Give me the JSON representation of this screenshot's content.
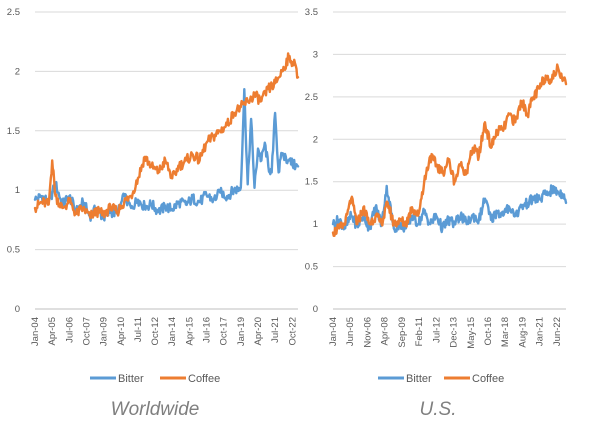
{
  "colors": {
    "bitter": "#5b9bd5",
    "coffee": "#ed7d31",
    "grid": "#d9d9d9",
    "axis_text": "#595959",
    "caption": "#7f7f7f"
  },
  "chart_data": [
    {
      "type": "line",
      "title": "",
      "caption": "Worldwide",
      "xlabel": "",
      "ylabel": "",
      "ylim": [
        0,
        2.5
      ],
      "yticks": [
        "0",
        "0.5",
        "1",
        "1.5",
        "2",
        "2.5"
      ],
      "grid": true,
      "legend_position": "bottom",
      "x_tick_labels": [
        "Jan-04",
        "Apr-05",
        "Jul-06",
        "Oct-07",
        "Jan-09",
        "Apr-10",
        "Jul-11",
        "Oct-12",
        "Jan-14",
        "Apr-15",
        "Jul-16",
        "Oct-17",
        "Jan-19",
        "Apr-20",
        "Jul-21",
        "Oct-22"
      ],
      "x_range": [
        "Jan-04",
        "Mar-23"
      ],
      "series": [
        {
          "name": "Bitter",
          "color": "#5b9bd5",
          "points": [
            [
              "Jan-04",
              0.92
            ],
            [
              "Jul-04",
              0.95
            ],
            [
              "Jan-05",
              0.9
            ],
            [
              "Jul-05",
              1.05
            ],
            [
              "Jan-06",
              0.88
            ],
            [
              "Jul-06",
              0.95
            ],
            [
              "Jan-07",
              0.82
            ],
            [
              "Jul-07",
              0.9
            ],
            [
              "Jan-08",
              0.78
            ],
            [
              "Jul-08",
              0.85
            ],
            [
              "Jan-09",
              0.76
            ],
            [
              "Jul-09",
              0.82
            ],
            [
              "Jan-10",
              0.8
            ],
            [
              "Jul-10",
              0.95
            ],
            [
              "Jan-11",
              0.85
            ],
            [
              "Jul-11",
              0.92
            ],
            [
              "Jan-12",
              0.86
            ],
            [
              "Jul-12",
              0.88
            ],
            [
              "Jan-13",
              0.82
            ],
            [
              "Jul-13",
              0.86
            ],
            [
              "Jan-14",
              0.84
            ],
            [
              "Jul-14",
              0.9
            ],
            [
              "Jan-15",
              0.88
            ],
            [
              "Jul-15",
              0.93
            ],
            [
              "Jan-16",
              0.9
            ],
            [
              "Jul-16",
              0.96
            ],
            [
              "Jan-17",
              0.92
            ],
            [
              "Jul-17",
              0.98
            ],
            [
              "Jan-18",
              0.95
            ],
            [
              "Jul-18",
              1.0
            ],
            [
              "Jan-19",
              1.02
            ],
            [
              "Apr-19",
              1.85
            ],
            [
              "Jul-19",
              1.05
            ],
            [
              "Oct-19",
              1.6
            ],
            [
              "Jan-20",
              1.02
            ],
            [
              "Apr-20",
              1.35
            ],
            [
              "Jul-20",
              1.25
            ],
            [
              "Oct-20",
              1.4
            ],
            [
              "Jan-21",
              1.2
            ],
            [
              "Apr-21",
              1.15
            ],
            [
              "Jul-21",
              1.65
            ],
            [
              "Oct-21",
              1.15
            ],
            [
              "Jan-22",
              1.3
            ],
            [
              "Jul-22",
              1.25
            ],
            [
              "Jan-23",
              1.2
            ],
            [
              "Mar-23",
              1.2
            ]
          ]
        },
        {
          "name": "Coffee",
          "color": "#ed7d31",
          "points": [
            [
              "Jan-04",
              0.85
            ],
            [
              "Jul-04",
              0.9
            ],
            [
              "Jan-05",
              0.88
            ],
            [
              "Apr-05",
              1.25
            ],
            [
              "Jul-05",
              0.95
            ],
            [
              "Jan-06",
              0.85
            ],
            [
              "Jul-06",
              0.9
            ],
            [
              "Jan-07",
              0.8
            ],
            [
              "Jul-07",
              0.85
            ],
            [
              "Jan-08",
              0.78
            ],
            [
              "Jul-08",
              0.82
            ],
            [
              "Jan-09",
              0.8
            ],
            [
              "Jul-09",
              0.85
            ],
            [
              "Jan-10",
              0.82
            ],
            [
              "Jul-10",
              0.9
            ],
            [
              "Jan-11",
              0.95
            ],
            [
              "Jul-11",
              1.1
            ],
            [
              "Jan-12",
              1.28
            ],
            [
              "Jul-12",
              1.2
            ],
            [
              "Jan-13",
              1.15
            ],
            [
              "Jul-13",
              1.25
            ],
            [
              "Jan-14",
              1.1
            ],
            [
              "Jul-14",
              1.2
            ],
            [
              "Jan-15",
              1.25
            ],
            [
              "Jul-15",
              1.3
            ],
            [
              "Jan-16",
              1.25
            ],
            [
              "Jul-16",
              1.4
            ],
            [
              "Jan-17",
              1.45
            ],
            [
              "Jul-17",
              1.5
            ],
            [
              "Jan-18",
              1.55
            ],
            [
              "Jul-18",
              1.65
            ],
            [
              "Jan-19",
              1.7
            ],
            [
              "Jul-19",
              1.75
            ],
            [
              "Jan-20",
              1.8
            ],
            [
              "Jul-20",
              1.75
            ],
            [
              "Jan-21",
              1.85
            ],
            [
              "Jul-21",
              1.9
            ],
            [
              "Jan-22",
              2.0
            ],
            [
              "Jul-22",
              2.12
            ],
            [
              "Jan-23",
              2.05
            ],
            [
              "Mar-23",
              1.95
            ]
          ]
        }
      ]
    },
    {
      "type": "line",
      "title": "",
      "caption": "U.S.",
      "xlabel": "",
      "ylabel": "",
      "ylim": [
        0,
        3.5
      ],
      "yticks": [
        "0",
        "0.5",
        "1",
        "1.5",
        "2",
        "2.5",
        "3",
        "3.5"
      ],
      "grid": true,
      "legend_position": "bottom",
      "x_tick_labels": [
        "Jan-04",
        "Jun-05",
        "Nov-06",
        "Apr-08",
        "Sep-09",
        "Feb-11",
        "Jul-12",
        "Dec-13",
        "May-15",
        "Oct-16",
        "Mar-18",
        "Aug-19",
        "Jan-21",
        "Jun-22"
      ],
      "x_range": [
        "Jan-04",
        "Mar-23"
      ],
      "series": [
        {
          "name": "Bitter",
          "color": "#5b9bd5",
          "points": [
            [
              "Jan-04",
              1.0
            ],
            [
              "Jul-04",
              1.05
            ],
            [
              "Jan-05",
              0.95
            ],
            [
              "Jul-05",
              1.1
            ],
            [
              "Jan-06",
              0.98
            ],
            [
              "Jul-06",
              1.1
            ],
            [
              "Jan-07",
              0.95
            ],
            [
              "Jul-07",
              1.2
            ],
            [
              "Jan-08",
              1.0
            ],
            [
              "Jun-08",
              1.45
            ],
            [
              "Jan-09",
              0.95
            ],
            [
              "Jul-09",
              1.0
            ],
            [
              "Jan-10",
              0.95
            ],
            [
              "Jul-10",
              1.1
            ],
            [
              "Jan-11",
              1.0
            ],
            [
              "Jul-11",
              1.15
            ],
            [
              "Jan-12",
              1.0
            ],
            [
              "Jul-12",
              1.1
            ],
            [
              "Jan-13",
              0.95
            ],
            [
              "Jul-13",
              1.05
            ],
            [
              "Jan-14",
              1.0
            ],
            [
              "Jul-14",
              1.1
            ],
            [
              "Jan-15",
              1.0
            ],
            [
              "Jul-15",
              1.1
            ],
            [
              "Jan-16",
              1.05
            ],
            [
              "Jul-16",
              1.3
            ],
            [
              "Jan-17",
              1.05
            ],
            [
              "Jul-17",
              1.15
            ],
            [
              "Jan-18",
              1.1
            ],
            [
              "Jul-18",
              1.2
            ],
            [
              "Jan-19",
              1.1
            ],
            [
              "Jul-19",
              1.2
            ],
            [
              "Jan-20",
              1.25
            ],
            [
              "Jul-20",
              1.3
            ],
            [
              "Jan-21",
              1.3
            ],
            [
              "Jul-21",
              1.35
            ],
            [
              "Jan-22",
              1.4
            ],
            [
              "Jul-22",
              1.38
            ],
            [
              "Jan-23",
              1.35
            ],
            [
              "Mar-23",
              1.25
            ]
          ]
        },
        {
          "name": "Coffee",
          "color": "#ed7d31",
          "points": [
            [
              "Jan-04",
              0.9
            ],
            [
              "Jul-04",
              0.95
            ],
            [
              "Jan-05",
              1.0
            ],
            [
              "Jul-05",
              1.3
            ],
            [
              "Jan-06",
              1.0
            ],
            [
              "Jul-06",
              1.2
            ],
            [
              "Jan-07",
              1.0
            ],
            [
              "Jul-07",
              1.1
            ],
            [
              "Jan-08",
              1.0
            ],
            [
              "Jul-08",
              1.25
            ],
            [
              "Jan-09",
              1.0
            ],
            [
              "Jul-09",
              1.05
            ],
            [
              "Jan-10",
              1.0
            ],
            [
              "Jul-10",
              1.2
            ],
            [
              "Jan-11",
              1.1
            ],
            [
              "Jul-11",
              1.5
            ],
            [
              "Jan-12",
              1.8
            ],
            [
              "Jul-12",
              1.7
            ],
            [
              "Jan-13",
              1.6
            ],
            [
              "Jul-13",
              1.75
            ],
            [
              "Jan-14",
              1.5
            ],
            [
              "Jul-14",
              1.7
            ],
            [
              "Jan-15",
              1.6
            ],
            [
              "Jul-15",
              1.9
            ],
            [
              "Jan-16",
              1.8
            ],
            [
              "Jul-16",
              2.2
            ],
            [
              "Jan-17",
              1.9
            ],
            [
              "Jul-17",
              2.1
            ],
            [
              "Jan-18",
              2.1
            ],
            [
              "Jul-18",
              2.3
            ],
            [
              "Jan-19",
              2.2
            ],
            [
              "Jul-19",
              2.45
            ],
            [
              "Jan-20",
              2.3
            ],
            [
              "Jul-20",
              2.5
            ],
            [
              "Jan-21",
              2.6
            ],
            [
              "Jul-21",
              2.75
            ],
            [
              "Jan-22",
              2.7
            ],
            [
              "Jul-22",
              2.85
            ],
            [
              "Jan-23",
              2.7
            ],
            [
              "Mar-23",
              2.65
            ]
          ]
        }
      ]
    }
  ]
}
